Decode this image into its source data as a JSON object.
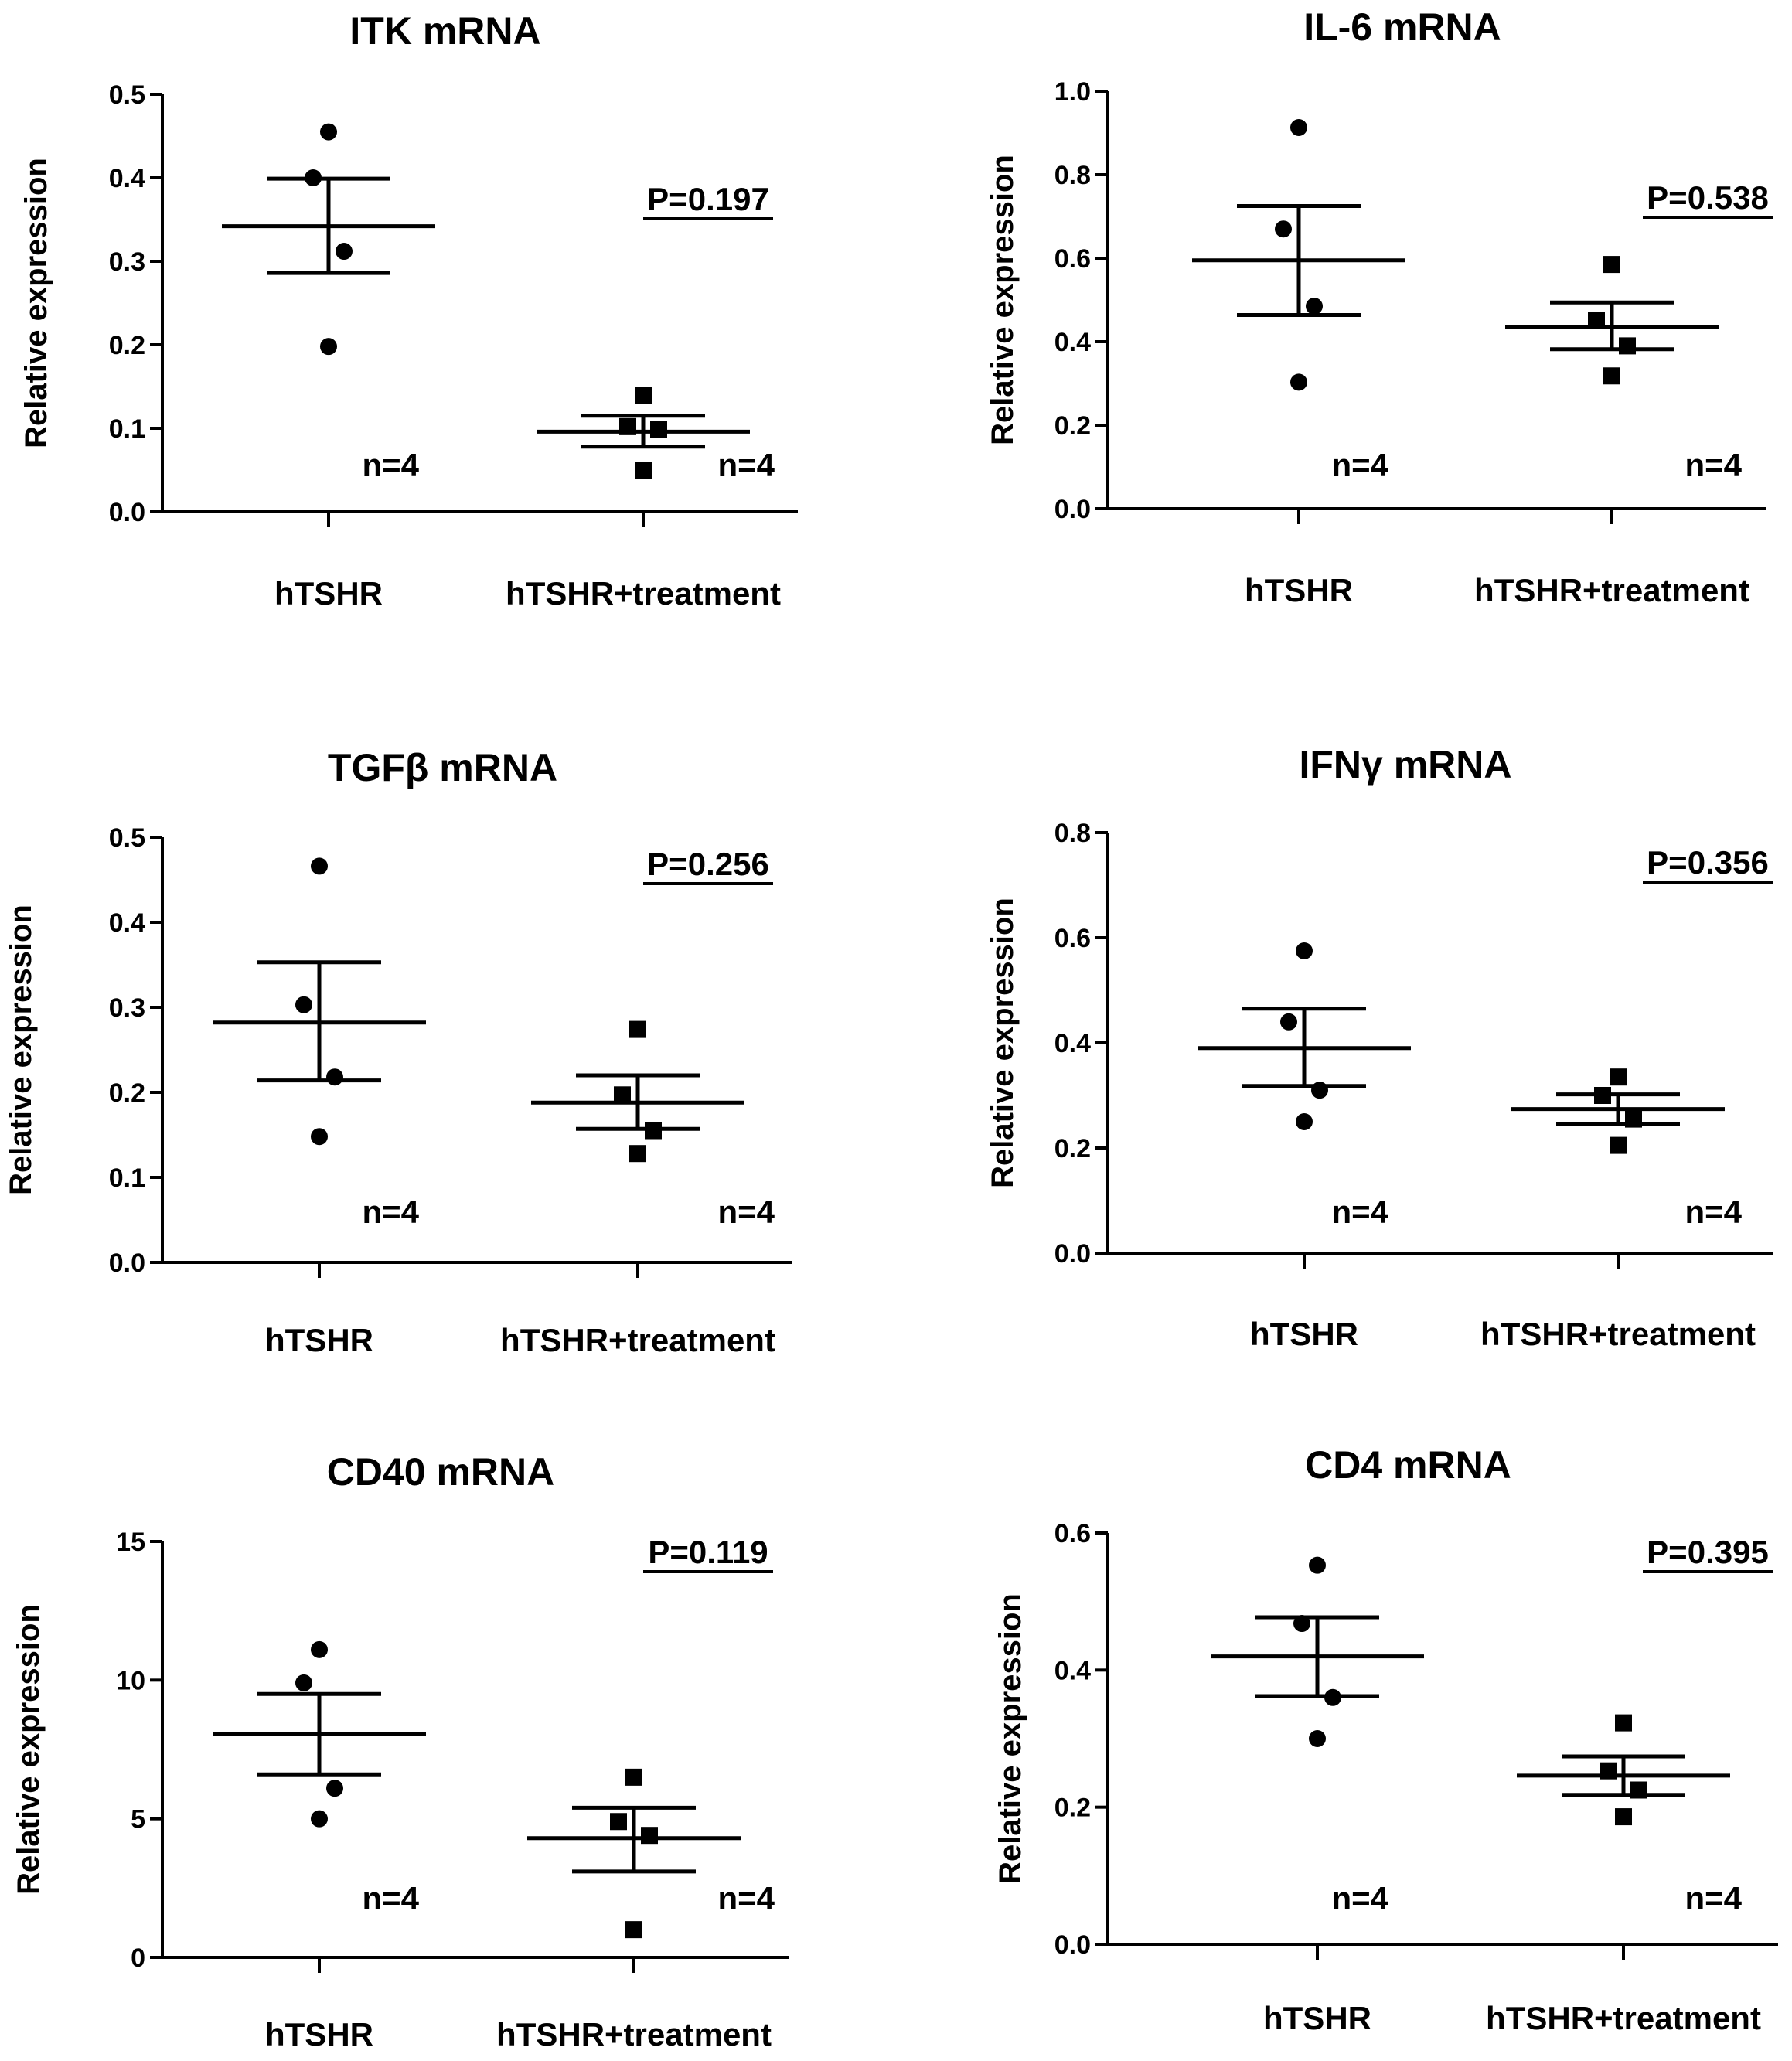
{
  "chart_data": [
    {
      "type": "scatter",
      "title": "ITK mRNA",
      "ylabel": "Relative expression",
      "ylim": [
        0,
        0.5
      ],
      "yticks": [
        "0.0",
        "0.1",
        "0.2",
        "0.3",
        "0.4",
        "0.5"
      ],
      "categories": [
        "hTSHR",
        "hTSHR+treatment"
      ],
      "p_value": "P=0.197",
      "series": [
        {
          "name": "hTSHR",
          "marker": "circle",
          "n_label": "n=4",
          "values": [
            0.455,
            0.4,
            0.312,
            0.198
          ],
          "mean": 0.342,
          "sem_low": 0.286,
          "sem_high": 0.399
        },
        {
          "name": "hTSHR+treatment",
          "marker": "square",
          "n_label": "n=4",
          "values": [
            0.139,
            0.102,
            0.099,
            0.05
          ],
          "mean": 0.096,
          "sem_low": 0.078,
          "sem_high": 0.115
        }
      ]
    },
    {
      "type": "scatter",
      "title": "IL-6 mRNA",
      "ylabel": "Relative expression",
      "ylim": [
        0,
        1.0
      ],
      "yticks": [
        "0.0",
        "0.2",
        "0.4",
        "0.6",
        "0.8",
        "1.0"
      ],
      "categories": [
        "hTSHR",
        "hTSHR+treatment"
      ],
      "p_value": "P=0.538",
      "series": [
        {
          "name": "hTSHR",
          "marker": "circle",
          "n_label": "n=4",
          "values": [
            0.913,
            0.67,
            0.485,
            0.303
          ],
          "mean": 0.595,
          "sem_low": 0.464,
          "sem_high": 0.725
        },
        {
          "name": "hTSHR+treatment",
          "marker": "square",
          "n_label": "n=4",
          "values": [
            0.585,
            0.45,
            0.39,
            0.318
          ],
          "mean": 0.435,
          "sem_low": 0.382,
          "sem_high": 0.494
        }
      ]
    },
    {
      "type": "scatter",
      "title": "TGFβ mRNA",
      "ylabel": "Relative expression",
      "ylim": [
        0,
        0.5
      ],
      "yticks": [
        "0.0",
        "0.1",
        "0.2",
        "0.3",
        "0.4",
        "0.5"
      ],
      "categories": [
        "hTSHR",
        "hTSHR+treatment"
      ],
      "p_value": "P=0.256",
      "series": [
        {
          "name": "hTSHR",
          "marker": "circle",
          "n_label": "n=4",
          "values": [
            0.466,
            0.303,
            0.218,
            0.148
          ],
          "mean": 0.282,
          "sem_low": 0.214,
          "sem_high": 0.353
        },
        {
          "name": "hTSHR+treatment",
          "marker": "square",
          "n_label": "n=4",
          "values": [
            0.274,
            0.197,
            0.155,
            0.128
          ],
          "mean": 0.188,
          "sem_low": 0.157,
          "sem_high": 0.22
        }
      ]
    },
    {
      "type": "scatter",
      "title": "IFNγ mRNA",
      "ylabel": "Relative expression",
      "ylim": [
        0,
        0.8
      ],
      "yticks": [
        "0.0",
        "0.2",
        "0.4",
        "0.6",
        "0.8"
      ],
      "categories": [
        "hTSHR",
        "hTSHR+treatment"
      ],
      "p_value": "P=0.356",
      "series": [
        {
          "name": "hTSHR",
          "marker": "circle",
          "n_label": "n=4",
          "values": [
            0.575,
            0.44,
            0.31,
            0.25
          ],
          "mean": 0.39,
          "sem_low": 0.318,
          "sem_high": 0.465
        },
        {
          "name": "hTSHR+treatment",
          "marker": "square",
          "n_label": "n=4",
          "values": [
            0.335,
            0.3,
            0.255,
            0.205
          ],
          "mean": 0.274,
          "sem_low": 0.245,
          "sem_high": 0.302
        }
      ]
    },
    {
      "type": "scatter",
      "title": "CD40 mRNA",
      "ylabel": "Relative expression",
      "ylim": [
        0,
        15
      ],
      "yticks": [
        "0",
        "5",
        "10",
        "15"
      ],
      "categories": [
        "hTSHR",
        "hTSHR+treatment"
      ],
      "p_value": "P=0.119",
      "series": [
        {
          "name": "hTSHR",
          "marker": "circle",
          "n_label": "n=4",
          "values": [
            11.1,
            9.9,
            6.1,
            5.0
          ],
          "mean": 8.05,
          "sem_low": 6.6,
          "sem_high": 9.5
        },
        {
          "name": "hTSHR+treatment",
          "marker": "square",
          "n_label": "n=4",
          "values": [
            6.5,
            4.9,
            4.4,
            1.0
          ],
          "mean": 4.3,
          "sem_low": 3.1,
          "sem_high": 5.4
        }
      ]
    },
    {
      "type": "scatter",
      "title": "CD4 mRNA",
      "ylabel": "Relative expression",
      "ylim": [
        0,
        0.6
      ],
      "yticks": [
        "0.0",
        "0.2",
        "0.4",
        "0.6"
      ],
      "categories": [
        "hTSHR",
        "hTSHR+treatment"
      ],
      "p_value": "P=0.395",
      "series": [
        {
          "name": "hTSHR",
          "marker": "circle",
          "n_label": "n=4",
          "values": [
            0.553,
            0.468,
            0.36,
            0.3
          ],
          "mean": 0.42,
          "sem_low": 0.362,
          "sem_high": 0.477
        },
        {
          "name": "hTSHR+treatment",
          "marker": "square",
          "n_label": "n=4",
          "values": [
            0.323,
            0.253,
            0.225,
            0.186
          ],
          "mean": 0.246,
          "sem_low": 0.218,
          "sem_high": 0.274
        }
      ]
    }
  ]
}
